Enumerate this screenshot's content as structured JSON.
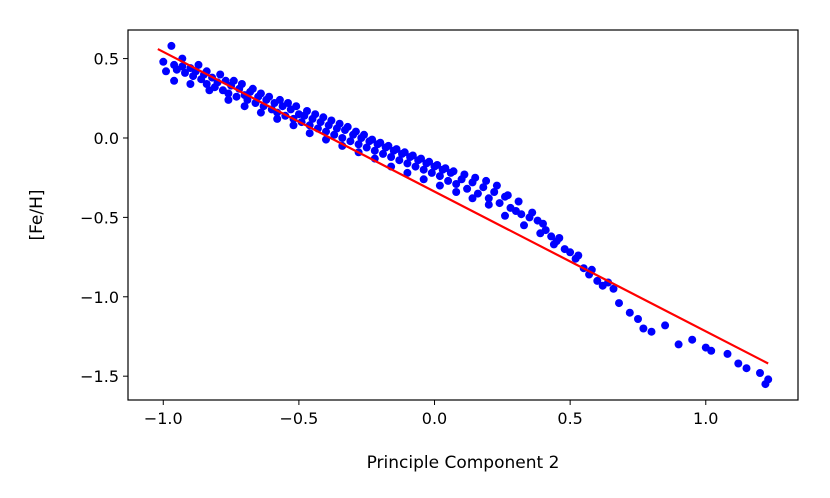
{
  "chart_data": {
    "type": "scatter",
    "title": "",
    "xlabel": "Principle Component 2",
    "ylabel": "[Fe/H]",
    "xlim": [
      -1.13,
      1.34
    ],
    "ylim": [
      -1.65,
      0.68
    ],
    "grid": false,
    "xticks": [
      -1.0,
      -0.5,
      0.0,
      0.5,
      1.0
    ],
    "xtick_labels": [
      "−1.0",
      "−0.5",
      "0.0",
      "0.5",
      "1.0"
    ],
    "yticks": [
      0.5,
      0.0,
      -0.5,
      -1.0,
      -1.5
    ],
    "ytick_labels": [
      "0.5",
      "0.0",
      "−0.5",
      "−1.0",
      "−1.5"
    ],
    "colors": {
      "points": "#0000ff",
      "fit_line": "#ff0000"
    },
    "fit_line": {
      "x": [
        -1.02,
        1.23
      ],
      "y": [
        0.56,
        -1.42
      ]
    },
    "points": [
      [
        -1.0,
        0.48
      ],
      [
        -0.97,
        0.58
      ],
      [
        -0.96,
        0.46
      ],
      [
        -0.95,
        0.43
      ],
      [
        -0.93,
        0.45
      ],
      [
        -0.92,
        0.41
      ],
      [
        -0.9,
        0.44
      ],
      [
        -0.89,
        0.39
      ],
      [
        -0.88,
        0.42
      ],
      [
        -0.86,
        0.37
      ],
      [
        -0.85,
        0.4
      ],
      [
        -0.84,
        0.34
      ],
      [
        -0.82,
        0.38
      ],
      [
        -0.81,
        0.32
      ],
      [
        -0.8,
        0.35
      ],
      [
        -0.78,
        0.3
      ],
      [
        -0.77,
        0.36
      ],
      [
        -0.76,
        0.28
      ],
      [
        -0.75,
        0.33
      ],
      [
        -0.73,
        0.26
      ],
      [
        -0.72,
        0.31
      ],
      [
        -0.7,
        0.27
      ],
      [
        -0.69,
        0.24
      ],
      [
        -0.68,
        0.29
      ],
      [
        -0.66,
        0.22
      ],
      [
        -0.65,
        0.26
      ],
      [
        -0.63,
        0.2
      ],
      [
        -0.62,
        0.24
      ],
      [
        -0.6,
        0.18
      ],
      [
        -0.59,
        0.22
      ],
      [
        -0.58,
        0.16
      ],
      [
        -0.56,
        0.2
      ],
      [
        -0.55,
        0.14
      ],
      [
        -0.53,
        0.18
      ],
      [
        -0.52,
        0.12
      ],
      [
        -0.5,
        0.15
      ],
      [
        -0.49,
        0.1
      ],
      [
        -0.48,
        0.14
      ],
      [
        -0.46,
        0.08
      ],
      [
        -0.45,
        0.12
      ],
      [
        -0.43,
        0.06
      ],
      [
        -0.42,
        0.1
      ],
      [
        -0.4,
        0.04
      ],
      [
        -0.39,
        0.08
      ],
      [
        -0.37,
        0.02
      ],
      [
        -0.36,
        0.06
      ],
      [
        -0.34,
        0.0
      ],
      [
        -0.33,
        0.05
      ],
      [
        -0.31,
        -0.02
      ],
      [
        -0.3,
        0.02
      ],
      [
        -0.28,
        -0.04
      ],
      [
        -0.27,
        0.0
      ],
      [
        -0.25,
        -0.06
      ],
      [
        -0.24,
        -0.02
      ],
      [
        -0.22,
        -0.08
      ],
      [
        -0.21,
        -0.04
      ],
      [
        -0.19,
        -0.1
      ],
      [
        -0.18,
        -0.06
      ],
      [
        -0.16,
        -0.12
      ],
      [
        -0.15,
        -0.08
      ],
      [
        -0.13,
        -0.14
      ],
      [
        -0.12,
        -0.1
      ],
      [
        -0.1,
        -0.16
      ],
      [
        -0.09,
        -0.12
      ],
      [
        -0.07,
        -0.18
      ],
      [
        -0.06,
        -0.14
      ],
      [
        -0.04,
        -0.2
      ],
      [
        -0.03,
        -0.16
      ],
      [
        -0.01,
        -0.22
      ],
      [
        0.0,
        -0.18
      ],
      [
        0.02,
        -0.24
      ],
      [
        0.03,
        -0.2
      ],
      [
        0.05,
        -0.27
      ],
      [
        0.06,
        -0.22
      ],
      [
        0.08,
        -0.29
      ],
      [
        0.1,
        -0.26
      ],
      [
        0.12,
        -0.32
      ],
      [
        0.14,
        -0.28
      ],
      [
        0.16,
        -0.35
      ],
      [
        0.18,
        -0.31
      ],
      [
        0.2,
        -0.38
      ],
      [
        0.22,
        -0.34
      ],
      [
        0.24,
        -0.41
      ],
      [
        0.26,
        -0.37
      ],
      [
        0.28,
        -0.44
      ],
      [
        0.3,
        -0.46
      ],
      [
        0.32,
        -0.48
      ],
      [
        0.35,
        -0.5
      ],
      [
        0.38,
        -0.52
      ],
      [
        0.4,
        -0.54
      ],
      [
        0.43,
        -0.62
      ],
      [
        0.45,
        -0.65
      ],
      [
        0.48,
        -0.7
      ],
      [
        0.5,
        -0.72
      ],
      [
        0.52,
        -0.76
      ],
      [
        0.55,
        -0.82
      ],
      [
        0.57,
        -0.86
      ],
      [
        0.6,
        -0.9
      ],
      [
        0.62,
        -0.93
      ],
      [
        0.66,
        -0.95
      ],
      [
        0.68,
        -1.04
      ],
      [
        0.72,
        -1.1
      ],
      [
        0.75,
        -1.14
      ],
      [
        0.77,
        -1.2
      ],
      [
        0.8,
        -1.22
      ],
      [
        0.85,
        -1.18
      ],
      [
        0.9,
        -1.3
      ],
      [
        0.95,
        -1.27
      ],
      [
        1.0,
        -1.32
      ],
      [
        1.02,
        -1.34
      ],
      [
        1.08,
        -1.36
      ],
      [
        1.12,
        -1.42
      ],
      [
        1.15,
        -1.45
      ],
      [
        1.2,
        -1.48
      ],
      [
        1.22,
        -1.55
      ],
      [
        1.23,
        -1.52
      ],
      [
        -0.99,
        0.42
      ],
      [
        -0.93,
        0.5
      ],
      [
        -0.87,
        0.46
      ],
      [
        -0.84,
        0.42
      ],
      [
        -0.79,
        0.4
      ],
      [
        -0.74,
        0.36
      ],
      [
        -0.71,
        0.34
      ],
      [
        -0.67,
        0.31
      ],
      [
        -0.64,
        0.28
      ],
      [
        -0.61,
        0.26
      ],
      [
        -0.57,
        0.24
      ],
      [
        -0.54,
        0.22
      ],
      [
        -0.51,
        0.2
      ],
      [
        -0.47,
        0.17
      ],
      [
        -0.44,
        0.15
      ],
      [
        -0.41,
        0.13
      ],
      [
        -0.38,
        0.11
      ],
      [
        -0.35,
        0.09
      ],
      [
        -0.32,
        0.07
      ],
      [
        -0.29,
        0.04
      ],
      [
        -0.26,
        0.02
      ],
      [
        -0.23,
        -0.01
      ],
      [
        -0.2,
        -0.03
      ],
      [
        -0.17,
        -0.05
      ],
      [
        -0.14,
        -0.07
      ],
      [
        -0.11,
        -0.09
      ],
      [
        -0.08,
        -0.11
      ],
      [
        -0.05,
        -0.13
      ],
      [
        -0.02,
        -0.15
      ],
      [
        0.01,
        -0.17
      ],
      [
        0.04,
        -0.19
      ],
      [
        0.07,
        -0.21
      ],
      [
        0.11,
        -0.23
      ],
      [
        0.15,
        -0.25
      ],
      [
        0.19,
        -0.27
      ],
      [
        0.23,
        -0.3
      ],
      [
        0.27,
        -0.36
      ],
      [
        0.31,
        -0.4
      ],
      [
        0.36,
        -0.47
      ],
      [
        0.41,
        -0.58
      ],
      [
        0.46,
        -0.63
      ],
      [
        0.53,
        -0.74
      ],
      [
        0.58,
        -0.83
      ],
      [
        0.64,
        -0.91
      ],
      [
        -0.96,
        0.36
      ],
      [
        -0.9,
        0.34
      ],
      [
        -0.83,
        0.3
      ],
      [
        -0.76,
        0.24
      ],
      [
        -0.7,
        0.2
      ],
      [
        -0.64,
        0.16
      ],
      [
        -0.58,
        0.12
      ],
      [
        -0.52,
        0.08
      ],
      [
        -0.46,
        0.03
      ],
      [
        -0.4,
        -0.01
      ],
      [
        -0.34,
        -0.05
      ],
      [
        -0.28,
        -0.09
      ],
      [
        -0.22,
        -0.13
      ],
      [
        -0.16,
        -0.18
      ],
      [
        -0.1,
        -0.22
      ],
      [
        -0.04,
        -0.26
      ],
      [
        0.02,
        -0.3
      ],
      [
        0.08,
        -0.34
      ],
      [
        0.14,
        -0.38
      ],
      [
        0.2,
        -0.42
      ],
      [
        0.26,
        -0.49
      ],
      [
        0.33,
        -0.55
      ],
      [
        0.39,
        -0.6
      ],
      [
        0.44,
        -0.67
      ]
    ]
  }
}
